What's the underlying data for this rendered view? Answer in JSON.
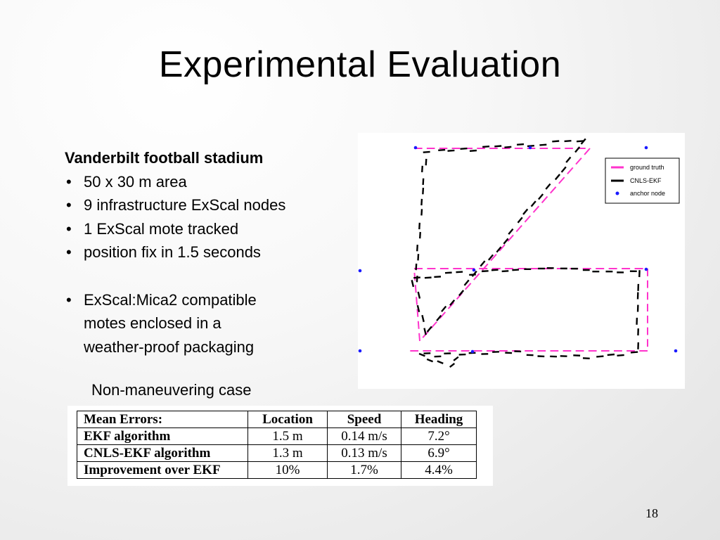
{
  "slide": {
    "title": "Experimental Evaluation",
    "page_number": "18"
  },
  "content": {
    "heading": "Vanderbilt football stadium",
    "bullets": [
      "50 x 30 m area",
      "9 infrastructure ExScal nodes",
      "1 ExScal mote tracked",
      "position fix in 1.5 seconds"
    ],
    "extra_bullet": {
      "prefix": "ExScal:",
      "line1": "Mica2 compatible",
      "line2": "motes enclosed in a",
      "line3": "weather-proof packaging"
    }
  },
  "figure": {
    "legend": [
      {
        "label": "ground truth",
        "color": "#ff33cc",
        "symbol": "dash"
      },
      {
        "label": "CNLS-EKF",
        "color": "#000000",
        "symbol": "dash"
      },
      {
        "label": "anchor node",
        "color": "#1a1aff",
        "symbol": "dot"
      }
    ]
  },
  "caption": "Non-maneuvering case",
  "table": {
    "headers": [
      "Mean Errors:",
      "Location",
      "Speed",
      "Heading"
    ],
    "rows": [
      [
        "EKF algorithm",
        "1.5 m",
        "0.14 m/s",
        "7.2°"
      ],
      [
        "CNLS-EKF algorithm",
        "1.3 m",
        "0.13 m/s",
        "6.9°"
      ],
      [
        "Improvement over EKF",
        "10%",
        "1.7%",
        "4.4%"
      ]
    ]
  }
}
